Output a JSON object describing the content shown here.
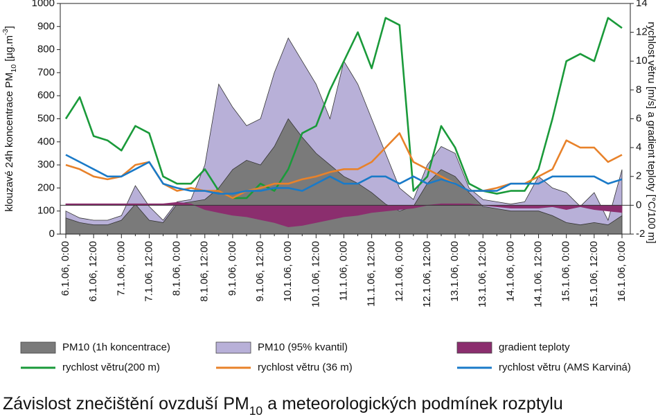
{
  "chart_data": {
    "type": "line",
    "title": [
      {
        "text": "Závislost znečištění ovzduší PM"
      },
      {
        "text": "10",
        "sub": true
      },
      {
        "text": " a meteorologických podmínek rozptylu"
      }
    ],
    "y_label": [
      {
        "text": "klouzavé 24h koncentrace PM"
      },
      {
        "text": "10",
        "sub": true
      },
      {
        "text": " [µg.m"
      },
      {
        "text": "-3",
        "sup": true
      },
      {
        "text": "]"
      }
    ],
    "y2_label": "rychlost větru [m/s] a gradient teploty [°C/100 m]",
    "categories": [
      "6.1.06, 0:00",
      null,
      "6.1.06, 12:00",
      null,
      "7.1.06, 0:00",
      null,
      "7.1.06, 12:00",
      null,
      "8.1.06, 0:00",
      null,
      "8.1.06, 12:00",
      null,
      "9.1.06, 0:00",
      null,
      "9.1.06, 12:00",
      null,
      "10.1.06, 0:00",
      null,
      "10.1.06, 12:00",
      null,
      "11.1.06, 0:00",
      null,
      "11.1.06, 12:00",
      null,
      "12.1.06, 0:00",
      null,
      "12.1.06, 12:00",
      null,
      "13.1.06, 0:00",
      null,
      "13.1.06, 12:00",
      null,
      "14.1.06, 0:00",
      null,
      "14.1.06, 12:00",
      null,
      "15.1.06, 0:00",
      null,
      "15.1.06, 12:00",
      null,
      "16.1.06, 0:00"
    ],
    "ylim": [
      0,
      1000
    ],
    "yticks": [
      0,
      100,
      200,
      300,
      400,
      500,
      600,
      700,
      800,
      900,
      1000
    ],
    "y2lim": [
      -2,
      14
    ],
    "y2ticks": [
      -2,
      0,
      2,
      4,
      6,
      8,
      10,
      12,
      14
    ],
    "series": [
      {
        "name": "PM10 (95% kvantil)",
        "kind": "area",
        "color": "#b8b0d8",
        "values": [
          100,
          70,
          60,
          60,
          80,
          210,
          120,
          60,
          140,
          150,
          300,
          650,
          550,
          470,
          500,
          700,
          850,
          750,
          650,
          500,
          750,
          650,
          500,
          350,
          200,
          150,
          300,
          380,
          350,
          200,
          150,
          140,
          130,
          140,
          250,
          200,
          180,
          120,
          180,
          60,
          280
        ]
      },
      {
        "name": "PM10 (1h koncentrace)",
        "kind": "area",
        "color": "#7a7a7a",
        "values": [
          70,
          50,
          40,
          40,
          60,
          130,
          60,
          50,
          130,
          140,
          150,
          200,
          280,
          320,
          300,
          380,
          500,
          420,
          350,
          300,
          250,
          220,
          180,
          130,
          100,
          120,
          220,
          280,
          250,
          180,
          120,
          110,
          100,
          100,
          100,
          80,
          50,
          40,
          50,
          40,
          80
        ]
      },
      {
        "name": "gradient teploty",
        "kind": "area",
        "axis": "y2",
        "color": "#8b2e6e",
        "values": [
          0.1,
          0.1,
          0.1,
          0.1,
          0.1,
          0.1,
          0.1,
          0.1,
          0.2,
          0.1,
          -0.3,
          -0.5,
          -0.7,
          -0.8,
          -1.0,
          -1.2,
          -1.5,
          -1.4,
          -1.2,
          -1.0,
          -0.8,
          -0.7,
          -0.5,
          -0.4,
          -0.3,
          -0.2,
          0.0,
          0.1,
          0.1,
          0.1,
          0.0,
          -0.1,
          -0.2,
          -0.2,
          -0.2,
          -0.1,
          -0.3,
          -0.1,
          -0.3,
          -0.4,
          -0.5
        ]
      },
      {
        "name": "rychlost větru(200 m)",
        "kind": "line",
        "axis": "y2",
        "color": "#1a9a3a",
        "values": [
          6.0,
          7.5,
          4.8,
          4.5,
          3.8,
          5.5,
          5.0,
          2.0,
          1.5,
          1.5,
          2.5,
          1.0,
          0.5,
          0.5,
          1.5,
          1.0,
          2.5,
          5.0,
          5.5,
          8.0,
          10.0,
          12.0,
          9.5,
          13.0,
          12.5,
          1.0,
          2.0,
          5.5,
          4.0,
          1.5,
          1.0,
          0.8,
          1.0,
          1.0,
          2.5,
          6.0,
          10.0,
          10.5,
          10.0,
          13.0,
          12.3
        ]
      },
      {
        "name": "rychlost větru (36 m)",
        "kind": "line",
        "axis": "y2",
        "color": "#e8822a",
        "values": [
          2.8,
          2.5,
          2.0,
          1.8,
          2.0,
          2.8,
          3.0,
          1.5,
          1.0,
          1.2,
          1.0,
          1.0,
          0.5,
          1.0,
          1.2,
          1.5,
          1.5,
          1.8,
          2.0,
          2.3,
          2.5,
          2.5,
          3.0,
          4.0,
          5.0,
          3.0,
          2.5,
          2.0,
          1.5,
          1.0,
          1.0,
          1.2,
          1.5,
          1.5,
          2.0,
          2.5,
          4.5,
          4.0,
          4.0,
          3.0,
          3.5
        ]
      },
      {
        "name": "rychlost větru (AMS Karviná)",
        "kind": "line",
        "axis": "y2",
        "color": "#1a7ac8",
        "values": [
          3.5,
          3.0,
          2.5,
          2.0,
          2.0,
          2.5,
          3.0,
          1.5,
          1.2,
          1.0,
          1.0,
          0.8,
          0.8,
          1.0,
          1.0,
          1.2,
          1.2,
          1.0,
          1.5,
          2.0,
          1.5,
          1.5,
          2.0,
          2.0,
          1.5,
          2.0,
          1.5,
          1.8,
          1.5,
          1.0,
          1.0,
          1.0,
          1.5,
          1.5,
          1.5,
          2.0,
          2.0,
          2.0,
          2.0,
          1.5,
          1.8
        ]
      }
    ]
  }
}
